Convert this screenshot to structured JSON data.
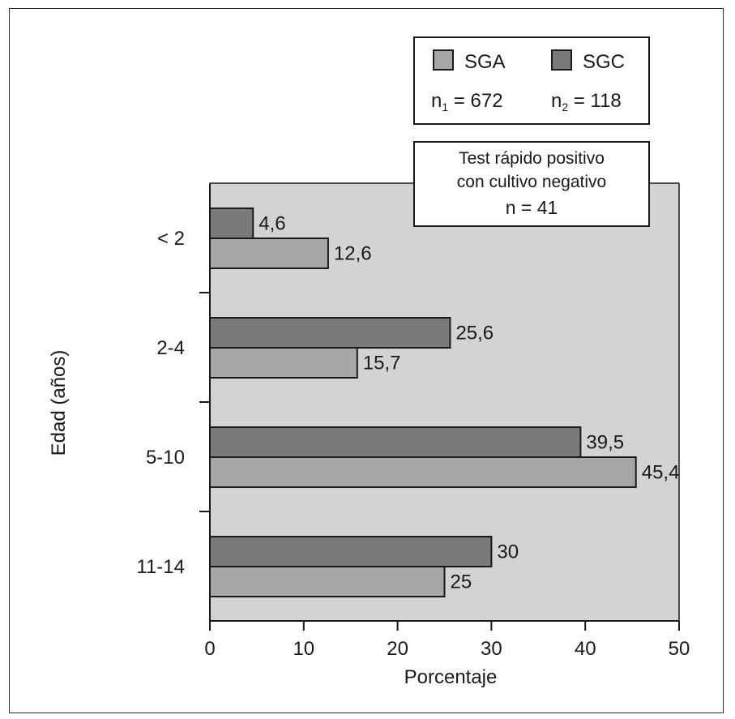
{
  "chart_data": {
    "type": "bar",
    "orientation": "horizontal",
    "categories": [
      "< 2",
      "2-4",
      "5-10",
      "11-14"
    ],
    "series": [
      {
        "name": "SGC",
        "values": [
          4.6,
          25.6,
          39.5,
          30
        ],
        "labels": [
          "4,6",
          "25,6",
          "39,5",
          "30"
        ],
        "color": "#7a7a7a"
      },
      {
        "name": "SGA",
        "values": [
          12.6,
          15.7,
          45.4,
          25
        ],
        "labels": [
          "12,6",
          "15,7",
          "45,4",
          "25"
        ],
        "color": "#a7a7a7"
      }
    ],
    "xlabel": "Porcentaje",
    "ylabel": "Edad (años)",
    "xlim": [
      0,
      50
    ],
    "xticks": [
      0,
      10,
      20,
      30,
      40,
      50
    ],
    "xtick_labels": [
      "0",
      "10",
      "20",
      "30",
      "40",
      "50"
    ],
    "plot_background": "#d3d3d3",
    "legend": {
      "placement": "top-right",
      "items": [
        {
          "name": "SGA",
          "color": "#a7a7a7",
          "n_label": "n",
          "n_sub": "1",
          "n_value": " = 672"
        },
        {
          "name": "SGC",
          "color": "#7a7a7a",
          "n_label": "n",
          "n_sub": "2",
          "n_value": " = 118"
        }
      ]
    },
    "annotation": {
      "lines": [
        "Test rápido positivo",
        "con cultivo negativo",
        "n = 41"
      ]
    }
  }
}
